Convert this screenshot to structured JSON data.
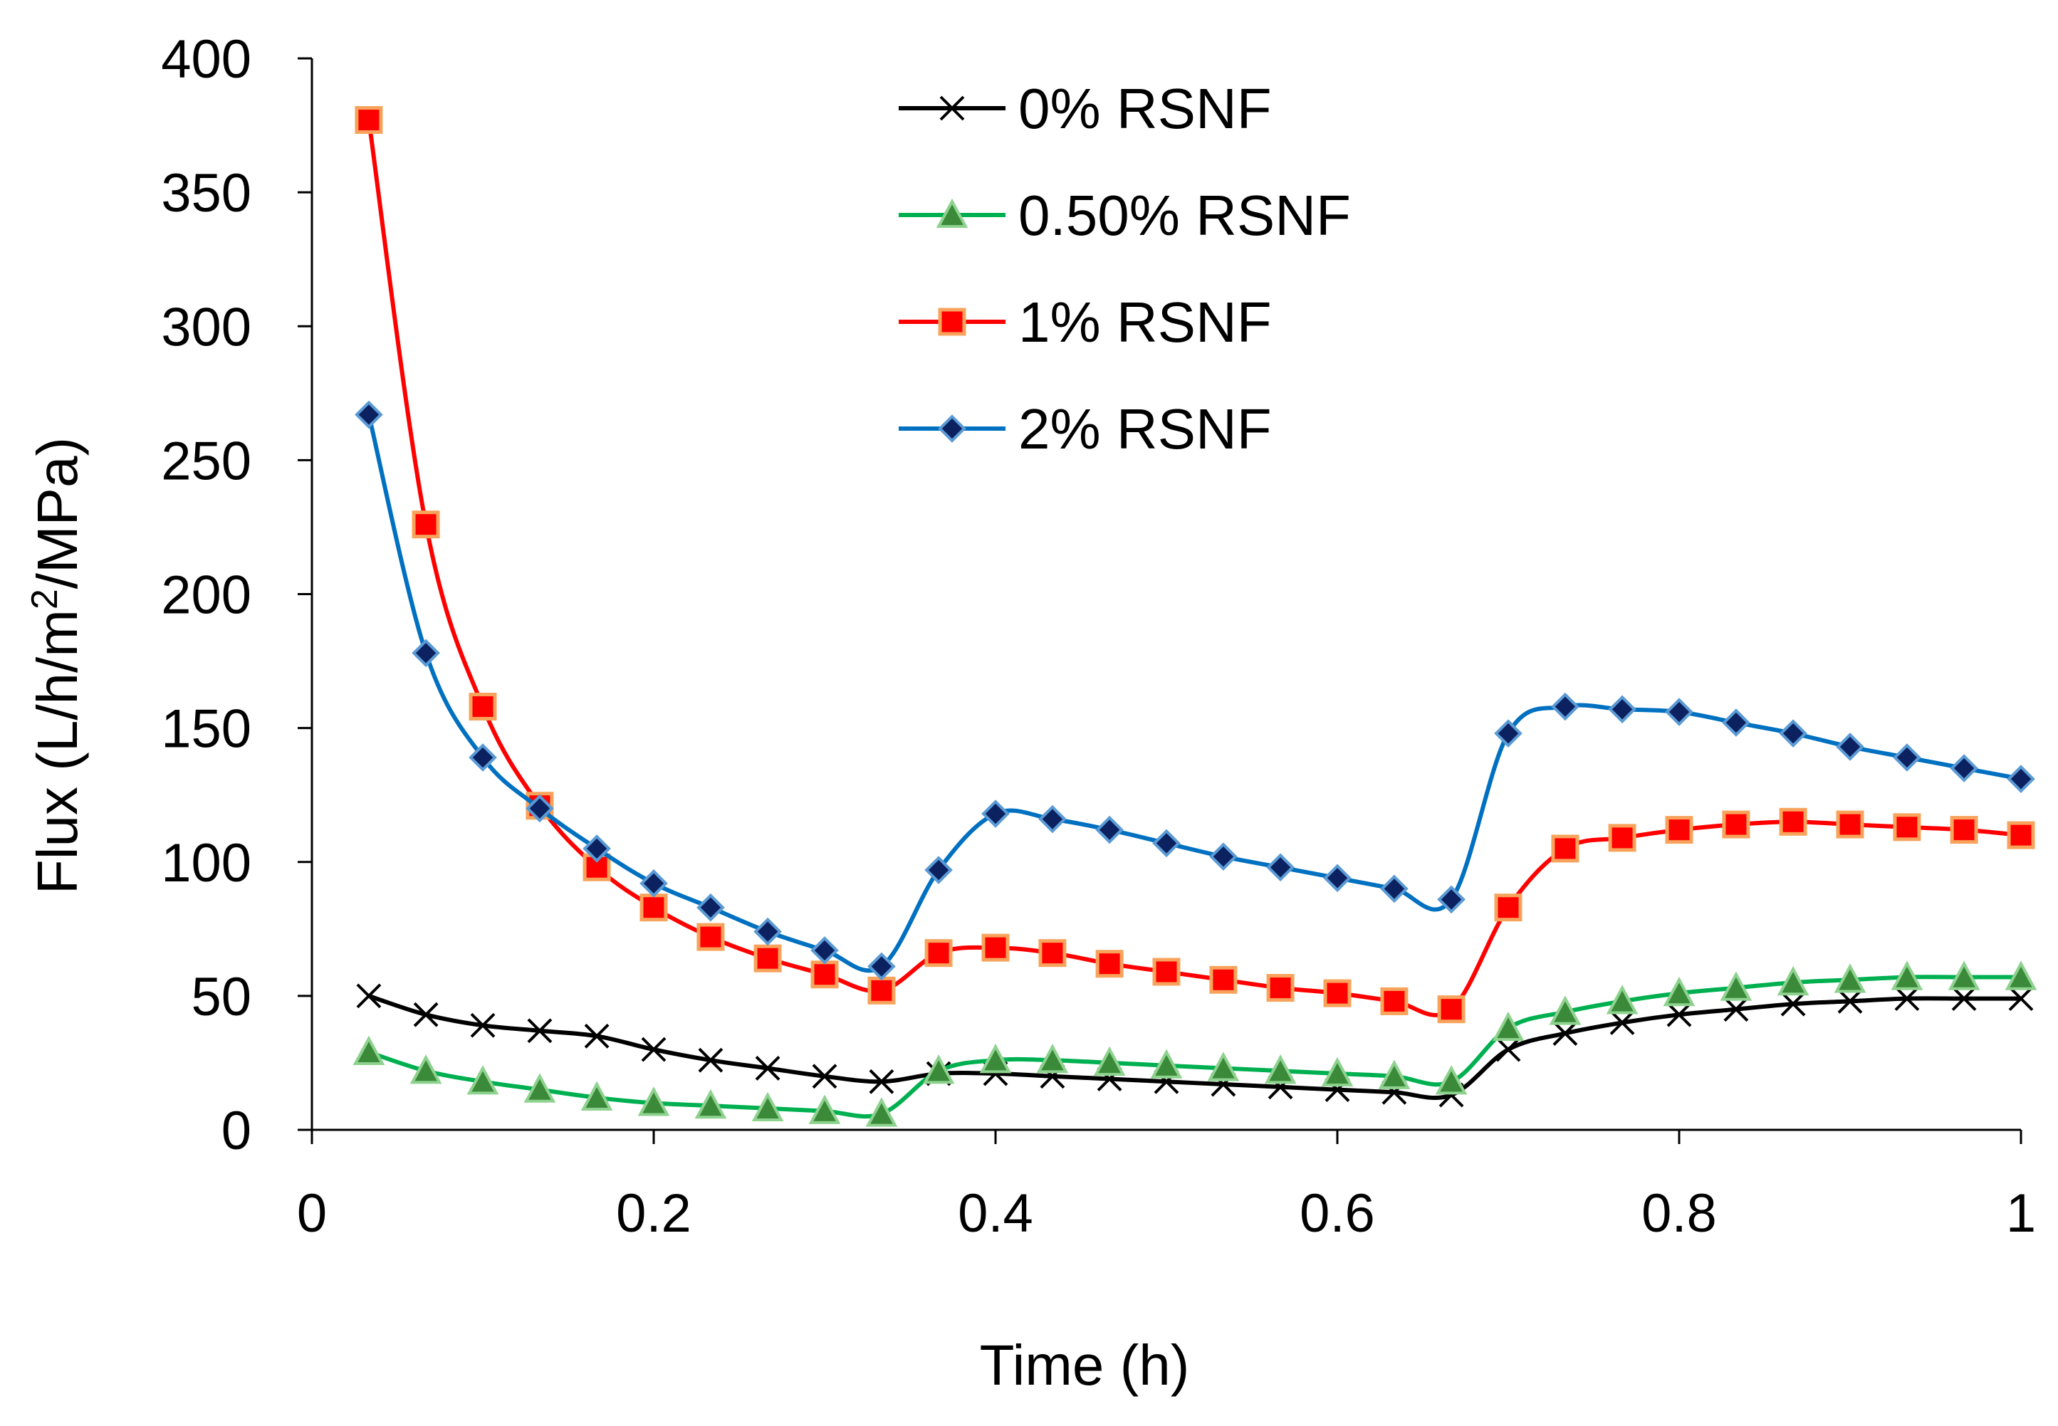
{
  "chart_data": {
    "type": "line",
    "title": "",
    "xlabel": "Time (h)",
    "ylabel_main": "Flux  (L/h/m",
    "ylabel_sup": "2",
    "ylabel_tail": "/MPa)",
    "xlim": [
      0,
      1
    ],
    "ylim": [
      0,
      400
    ],
    "x_ticks": [
      0,
      0.2,
      0.4,
      0.6,
      0.8,
      1
    ],
    "x_tick_labels": [
      "0",
      "0.2",
      "0.4",
      "0.6",
      "0.8",
      "1"
    ],
    "y_ticks": [
      0,
      50,
      100,
      150,
      200,
      250,
      300,
      350,
      400
    ],
    "y_tick_labels": [
      "0",
      "50",
      "100",
      "150",
      "200",
      "250",
      "300",
      "350",
      "400"
    ],
    "grid": false,
    "legend_position": "top-center",
    "x": [
      0.0333,
      0.0667,
      0.1,
      0.1333,
      0.1667,
      0.2,
      0.2333,
      0.2667,
      0.3,
      0.3333,
      0.3667,
      0.4,
      0.4333,
      0.4667,
      0.5,
      0.5333,
      0.5667,
      0.6,
      0.6333,
      0.6667,
      0.7,
      0.7333,
      0.7667,
      0.8,
      0.8333,
      0.8667,
      0.9,
      0.9333,
      0.9667,
      1.0
    ],
    "series": [
      {
        "name": "0% RSNF",
        "color": "#000000",
        "marker": "x",
        "values": [
          50,
          43,
          39,
          37,
          35,
          30,
          26,
          23,
          20,
          18,
          21,
          21,
          20,
          19,
          18,
          17,
          16,
          15,
          14,
          13,
          30,
          36,
          40,
          43,
          45,
          47,
          48,
          49,
          49,
          49
        ]
      },
      {
        "name": "0.50% RSNF",
        "color": "#00b050",
        "marker": "triangle",
        "marker_fill": "#3a8a3a",
        "marker_edge": "#8fd28f",
        "values": [
          29,
          22,
          18,
          15,
          12,
          10,
          9,
          8,
          7,
          6,
          22,
          26,
          26,
          25,
          24,
          23,
          22,
          21,
          20,
          18,
          38,
          44,
          48,
          51,
          53,
          55,
          56,
          57,
          57,
          57
        ]
      },
      {
        "name": "1% RSNF",
        "color": "#ff0000",
        "marker": "square",
        "marker_fill": "#ff0000",
        "marker_edge": "#f7a35c",
        "values": [
          377,
          226,
          158,
          121,
          98,
          83,
          72,
          64,
          58,
          52,
          66,
          68,
          66,
          62,
          59,
          56,
          53,
          51,
          48,
          45,
          83,
          105,
          109,
          112,
          114,
          115,
          114,
          113,
          112,
          110
        ]
      },
      {
        "name": "2% RSNF",
        "color": "#0070c0",
        "marker": "diamond",
        "marker_fill": "#0b2160",
        "marker_edge": "#5b9bd5",
        "values": [
          267,
          178,
          139,
          120,
          105,
          92,
          83,
          74,
          67,
          61,
          97,
          118,
          116,
          112,
          107,
          102,
          98,
          94,
          90,
          86,
          148,
          158,
          157,
          156,
          152,
          148,
          143,
          139,
          135,
          131
        ]
      }
    ]
  }
}
